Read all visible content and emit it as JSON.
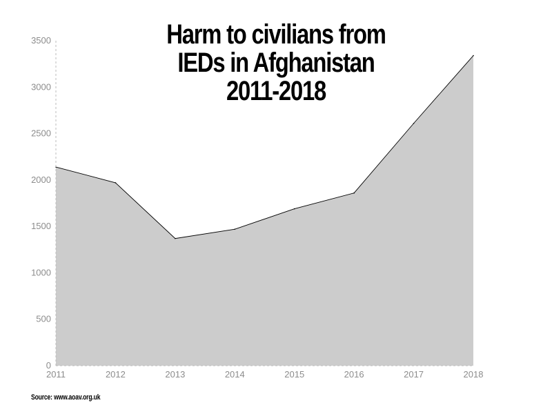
{
  "chart_data": {
    "type": "area",
    "title": "Harm to civilians from IEDs in Afghanistan 2011-2018",
    "title_lines": [
      "Harm to civilians from",
      "IEDs in Afghanistan",
      "2011-2018"
    ],
    "x": [
      "2011",
      "2012",
      "2013",
      "2014",
      "2015",
      "2016",
      "2017",
      "2018"
    ],
    "series": [
      {
        "values": [
          2140,
          1970,
          1370,
          1470,
          1690,
          1860,
          2610,
          3340
        ]
      }
    ],
    "y_ticks": [
      "0",
      "500",
      "1000",
      "1500",
      "2000",
      "2500",
      "3000",
      "3500"
    ],
    "ylim": [
      0,
      3500
    ],
    "xlabel": "",
    "ylabel": "",
    "grid": false,
    "legend": "none",
    "colors": {
      "area_fill": "#cccccc",
      "line": "#000000",
      "axis": "#bbbbbb",
      "tick_text": "#8c8c8c"
    }
  },
  "source": "Source: www.aoav.org.uk"
}
